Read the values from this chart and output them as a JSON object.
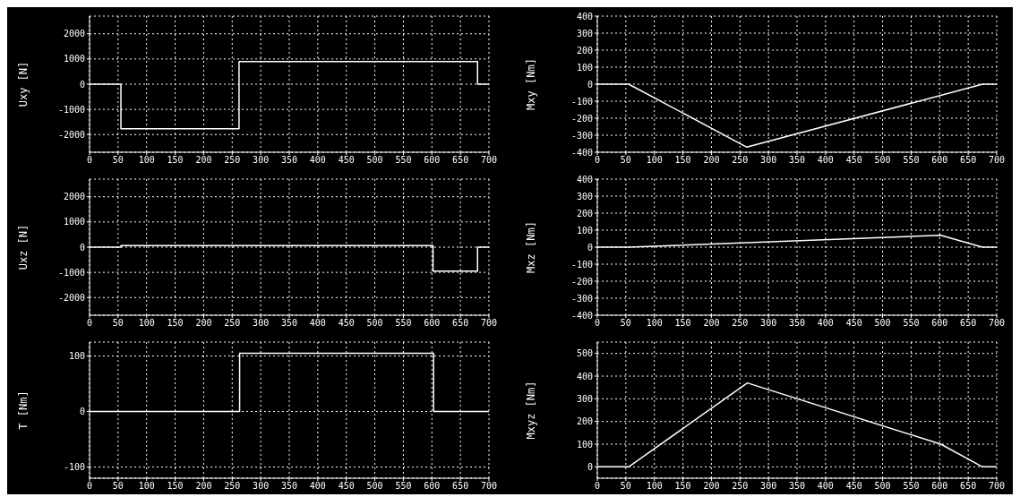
{
  "chart_data": [
    {
      "type": "step",
      "ylabel": "Uxy [N]",
      "x": [
        0,
        55,
        262,
        680,
        700
      ],
      "series": [
        {
          "color": "#ffffff",
          "values": [
            0,
            -1770,
            900,
            0,
            0
          ]
        }
      ],
      "xlim": [
        0,
        700
      ],
      "xticks": [
        0,
        50,
        100,
        150,
        200,
        250,
        300,
        350,
        400,
        450,
        500,
        550,
        600,
        650,
        700
      ],
      "ylim": [
        -2700,
        2700
      ],
      "yticks": [
        -2000,
        -1000,
        0,
        1000,
        2000
      ],
      "grid": true,
      "marker": "none",
      "line_style": "solid"
    },
    {
      "type": "line",
      "ylabel": "Mxy [Nm]",
      "x": [
        0,
        55,
        262,
        675,
        700
      ],
      "series": [
        {
          "color": "#ffffff",
          "values": [
            0,
            0,
            -370,
            0,
            0
          ]
        }
      ],
      "xlim": [
        0,
        700
      ],
      "xticks": [
        0,
        50,
        100,
        150,
        200,
        250,
        300,
        350,
        400,
        450,
        500,
        550,
        600,
        650,
        700
      ],
      "ylim": [
        -400,
        400
      ],
      "yticks": [
        -400,
        -300,
        -200,
        -100,
        0,
        100,
        200,
        300,
        400
      ],
      "grid": true,
      "marker": "none",
      "line_style": "solid"
    },
    {
      "type": "step",
      "ylabel": "Uxz [N]",
      "x": [
        0,
        55,
        602,
        680,
        700
      ],
      "series": [
        {
          "color": "#ffffff",
          "values": [
            0,
            60,
            -950,
            0,
            0
          ]
        }
      ],
      "xlim": [
        0,
        700
      ],
      "xticks": [
        0,
        50,
        100,
        150,
        200,
        250,
        300,
        350,
        400,
        450,
        500,
        550,
        600,
        650,
        700
      ],
      "ylim": [
        -2700,
        2700
      ],
      "yticks": [
        -2000,
        -1000,
        0,
        1000,
        2000
      ],
      "grid": true,
      "marker": "none",
      "line_style": "solid"
    },
    {
      "type": "line",
      "ylabel": "Mxz [Nm]",
      "x": [
        0,
        55,
        602,
        675,
        700
      ],
      "series": [
        {
          "color": "#ffffff",
          "values": [
            0,
            0,
            70,
            0,
            0
          ]
        }
      ],
      "xlim": [
        0,
        700
      ],
      "xticks": [
        0,
        50,
        100,
        150,
        200,
        250,
        300,
        350,
        400,
        450,
        500,
        550,
        600,
        650,
        700
      ],
      "ylim": [
        -400,
        400
      ],
      "yticks": [
        -400,
        -300,
        -200,
        -100,
        0,
        100,
        200,
        300,
        400
      ],
      "grid": true,
      "marker": "none",
      "line_style": "solid"
    },
    {
      "type": "step",
      "ylabel": "T [Nm]",
      "x": [
        0,
        263,
        603,
        700
      ],
      "series": [
        {
          "color": "#ffffff",
          "values": [
            0,
            105,
            0,
            0
          ]
        }
      ],
      "xlim": [
        0,
        700
      ],
      "xticks": [
        0,
        50,
        100,
        150,
        200,
        250,
        300,
        350,
        400,
        450,
        500,
        550,
        600,
        650,
        700
      ],
      "ylim": [
        -120,
        125
      ],
      "yticks": [
        -100,
        0,
        100
      ],
      "grid": true,
      "marker": "none",
      "line_style": "solid"
    },
    {
      "type": "line",
      "ylabel": "Mxyz [Nm]",
      "x": [
        0,
        55,
        263,
        602,
        675,
        700
      ],
      "series": [
        {
          "color": "#ffffff",
          "values": [
            0,
            0,
            370,
            100,
            0,
            0
          ]
        }
      ],
      "xlim": [
        0,
        700
      ],
      "xticks": [
        0,
        50,
        100,
        150,
        200,
        250,
        300,
        350,
        400,
        450,
        500,
        550,
        600,
        650,
        700
      ],
      "ylim": [
        -50,
        550
      ],
      "yticks": [
        0,
        100,
        200,
        300,
        400,
        500
      ],
      "grid": true,
      "marker": "none",
      "line_style": "solid"
    }
  ]
}
